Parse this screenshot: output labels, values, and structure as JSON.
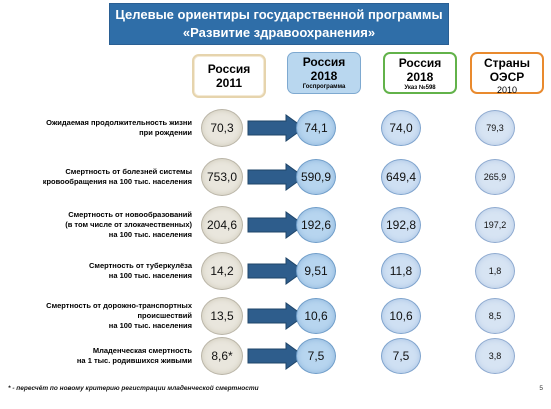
{
  "title": {
    "line1": "Целевые ориентиры государственной программы",
    "line2": "«Развитие здравоохранения»"
  },
  "columns": {
    "russia_2011": {
      "line1": "Россия",
      "line2": "2011",
      "note": ""
    },
    "russia_2018_program": {
      "line1": "Россия",
      "line2": "2018",
      "note": "Госпрограмма"
    },
    "russia_2018_decree": {
      "line1": "Россия",
      "line2": "2018",
      "note": "Указ №598"
    },
    "oecd": {
      "line1": "Страны",
      "line2": "ОЭСР",
      "note": "2010"
    }
  },
  "rows": [
    {
      "label": "Ожидаемая продолжительность жизни\nпри рождении",
      "v2011": "70,3",
      "v2018": "74,1",
      "v2018b": "74,0",
      "voecd": "79,3"
    },
    {
      "label": "Смертность от болезней системы\nкровообращения на 100 тыс. населения",
      "v2011": "753,0",
      "v2018": "590,9",
      "v2018b": "649,4",
      "voecd": "265,9"
    },
    {
      "label": "Смертность от новообразований\n(в том числе от злокачественных)\nна 100 тыс. населения",
      "v2011": "204,6",
      "v2018": "192,6",
      "v2018b": "192,8",
      "voecd": "197,2"
    },
    {
      "label": "Смертность от туберкулёза\nна 100 тыс. населения",
      "v2011": "14,2",
      "v2018": "9,51",
      "v2018b": "11,8",
      "voecd": "1,8"
    },
    {
      "label": "Смертность от дорожно-транспортных\nпроисшествий\nна 100 тыс. населения",
      "v2011": "13,5",
      "v2018": "10,6",
      "v2018b": "10,6",
      "voecd": "8,5"
    },
    {
      "label": "Младенческая смертность\nна 1 тыс. родившихся живыми",
      "v2011": "8,6*",
      "v2018": "7,5",
      "v2018b": "7,5",
      "voecd": "3,8"
    }
  ],
  "footnote": "* - пересчёт по новому критерию регистрации младенческой смертности",
  "page_number": "5",
  "colors": {
    "banner": "#2f6ea8",
    "russia_2011_border": "#e6d4ad",
    "russia_2018_fill": "#b9d7ef",
    "decree_border": "#62b24a",
    "oecd_border": "#e98a2e",
    "arrow": "#2e5d8c"
  }
}
